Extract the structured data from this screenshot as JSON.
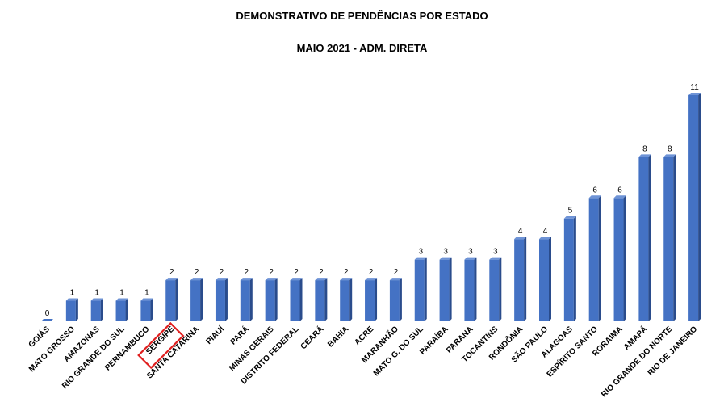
{
  "chart_data": {
    "type": "bar",
    "title": "DEMONSTRATIVO DE PENDÊNCIAS POR ESTADO",
    "subtitle": "MAIO 2021 - ADM. DIRETA",
    "categories": [
      "GOIÁS",
      "MATO GROSSO",
      "AMAZONAS",
      "RIO GRANDE DO SUL",
      "PERNAMBUCO",
      "SERGIPE",
      "SANTA CATARINA",
      "PIAUÍ",
      "PARÁ",
      "MINAS GERAIS",
      "DISTRITO  FEDERAL",
      "CEARÁ",
      "BAHIA",
      "ACRE",
      "MARANHÃO",
      "MATO G. DO SUL",
      "PARAÍBA",
      "PARANÁ",
      "TOCANTINS",
      "RONDÔNIA",
      "SÃO PAULO",
      "ALAGOAS",
      "ESPÍRITO  SANTO",
      "RORAIMA",
      "AMAPÁ",
      "RIO GRANDE DO NORTE",
      "RIO DE JANEIRO"
    ],
    "values": [
      0,
      1,
      1,
      1,
      1,
      2,
      2,
      2,
      2,
      2,
      2,
      2,
      2,
      2,
      2,
      3,
      3,
      3,
      3,
      4,
      4,
      5,
      6,
      6,
      8,
      8,
      11
    ],
    "ylim": [
      0,
      11
    ],
    "grid": false,
    "legend": "none",
    "highlighted_category": "SERGIPE",
    "colors": {
      "bar_front": "#4472C4",
      "bar_side": "#2A4C8C",
      "bar_top": "#6E93D6",
      "highlight_box": "#E02020"
    }
  }
}
